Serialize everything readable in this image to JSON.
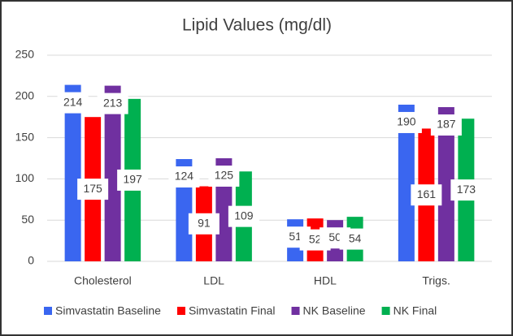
{
  "chart_data": {
    "type": "bar",
    "title": "Lipid Values (mg/dl)",
    "categories": [
      "Cholesterol",
      "LDL",
      "HDL",
      "Trigs."
    ],
    "series": [
      {
        "name": "Simvastatin Baseline",
        "color": "#3a66f0",
        "values": [
          214,
          124,
          51,
          190
        ]
      },
      {
        "name": "Simvastatin Final",
        "color": "#ff0000",
        "values": [
          175,
          91,
          52,
          161
        ]
      },
      {
        "name": "NK Baseline",
        "color": "#7030a0",
        "values": [
          213,
          125,
          50,
          187
        ]
      },
      {
        "name": "NK Final",
        "color": "#00b050",
        "values": [
          197,
          109,
          54,
          173
        ]
      }
    ],
    "ylim": [
      0,
      250
    ],
    "yticks": [
      0,
      50,
      100,
      150,
      200,
      250
    ],
    "grid": true,
    "legend": "bottom"
  }
}
